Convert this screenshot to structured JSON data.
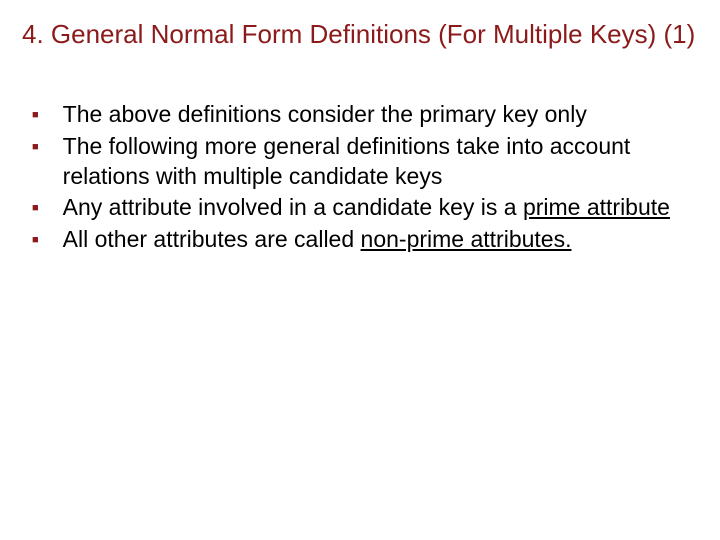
{
  "title": "4.  General Normal Form Definitions (For Multiple Keys) (1)",
  "bullets": [
    {
      "text": "The above definitions consider the primary key only"
    },
    {
      "text": "The following more general definitions take into account relations with multiple candidate keys"
    },
    {
      "text_before": "Any attribute involved in a candidate key is a ",
      "underlined": "prime attribute"
    },
    {
      "text_before": "All other attributes are called ",
      "underlined": "non-prime attributes."
    }
  ],
  "colors": {
    "title": "#8b1a1a",
    "bullet": "#8b1a1a",
    "text": "#000000",
    "background": "#ffffff"
  },
  "typography": {
    "title_fontsize": 26,
    "body_fontsize": 23,
    "bullet_fontsize": 11
  }
}
